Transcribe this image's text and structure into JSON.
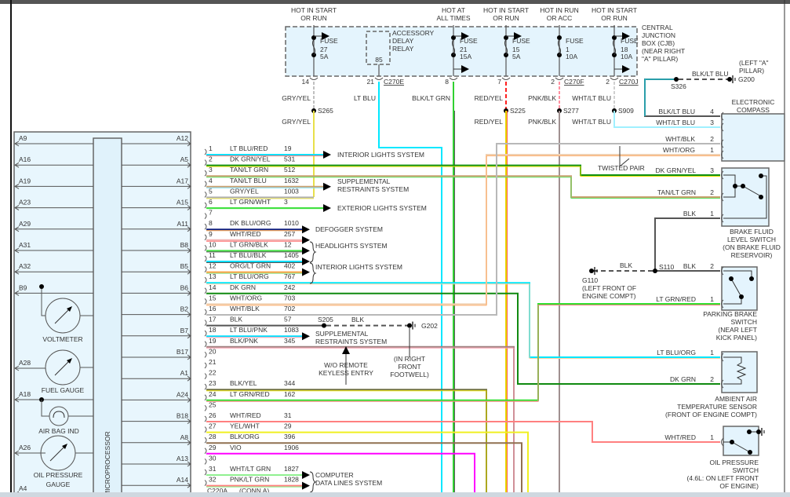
{
  "colors": {
    "box_fill": "#e4f4fd",
    "line": "#555555",
    "ground": "#000000"
  },
  "cjb": {
    "title": [
      "CENTRAL",
      "JUNCTION",
      "BOX (CJB)",
      "(NEAR RIGHT",
      "\"A\" PILLAR)"
    ],
    "feeds": [
      {
        "hot": [
          "HOT IN START",
          "OR RUN"
        ],
        "fuse": "FUSE",
        "num": "27",
        "amp": "5A",
        "pin": "14",
        "conn": "",
        "wire_top": "GRY/YEL",
        "splice": "S265",
        "wire_bottom": "GRY/YEL",
        "top_hex": "#c0c0c0",
        "bottom_hex": "#e8e04a"
      },
      {
        "hot": [
          "",
          ""
        ],
        "relay": [
          "ACCESSORY",
          "DELAY",
          "RELAY"
        ],
        "terminal": "85",
        "pin": "21",
        "conn": "C270E",
        "wire_top": "LT BLU",
        "splice": "",
        "wire_bottom": "",
        "top_hex": "#00e8ff",
        "bottom_hex": "#00e8ff"
      },
      {
        "hot": [
          "HOT AT",
          "ALL TIMES"
        ],
        "fuse": "FUSE",
        "num": "21",
        "amp": "15A",
        "pin": "8",
        "conn": "",
        "wire_top": "BLK/LT GRN",
        "splice": "",
        "wire_bottom": "",
        "top_hex": "#30d030",
        "bottom_hex": "#30d030"
      },
      {
        "hot": [
          "HOT IN START",
          "OR RUN"
        ],
        "fuse": "FUSE",
        "num": "15",
        "amp": "5A",
        "pin": "7",
        "conn": "",
        "wire_top": "RED/YEL",
        "splice": "S225",
        "wire_bottom": "RED/YEL",
        "top_hex": "#ff2020",
        "bottom_hex": "#e8d800"
      },
      {
        "hot": [
          "HOT IN RUN",
          "OR ACC"
        ],
        "fuse": "FUSE",
        "num": "1",
        "amp": "10A",
        "pin": "2",
        "conn": "C270F",
        "wire_top": "PNK/BLK",
        "splice": "S277",
        "wire_bottom": "PNK/BLK",
        "top_hex": "#ff90a0",
        "bottom_hex": "#a09090"
      },
      {
        "hot": [
          "HOT IN START",
          "OR RUN"
        ],
        "fuse": "FUSE",
        "num": "18",
        "amp": "10A",
        "pin": "2",
        "conn": "C270J",
        "wire_top": "WHT/LT BLU",
        "splice": "S909",
        "wire_bottom": "WHT/LT BLU",
        "top_hex": "#d0d0d0",
        "bottom_hex": "#a0f0ff"
      }
    ]
  },
  "connector": {
    "name": "C220A",
    "conn": "(CONN A)",
    "pins": [
      {
        "pin": "1",
        "color": "LT BLU/RED",
        "circuit": "19",
        "hex": "#00e0ff",
        "stripe": "#ff8080"
      },
      {
        "pin": "2",
        "color": "DK GRN/YEL",
        "circuit": "531",
        "hex": "#109010",
        "stripe": "#e8e000"
      },
      {
        "pin": "3",
        "color": "TAN/LT GRN",
        "circuit": "512",
        "hex": "#c8a070",
        "stripe": "#60e060"
      },
      {
        "pin": "4",
        "color": "TAN/LT BLU",
        "circuit": "1632",
        "hex": "#c8a070",
        "stripe": "#80e0ff"
      },
      {
        "pin": "5",
        "color": "GRY/YEL",
        "circuit": "1003",
        "hex": "#b0b0b0",
        "stripe": "#e8e04a"
      },
      {
        "pin": "6",
        "color": "LT GRN/WHT",
        "circuit": "3",
        "hex": "#40e040",
        "stripe": "#e0ffe0"
      },
      {
        "pin": "7",
        "color": "",
        "circuit": "",
        "hex": "",
        "stripe": ""
      },
      {
        "pin": "8",
        "color": "DK BLU/ORG",
        "circuit": "1010",
        "hex": "#102080",
        "stripe": "#ffa040"
      },
      {
        "pin": "9",
        "color": "WHT/RED",
        "circuit": "257",
        "hex": "#f0b0b0",
        "stripe": "#ff7070"
      },
      {
        "pin": "10",
        "color": "LT GRN/BLK",
        "circuit": "12",
        "hex": "#40e040",
        "stripe": "#505050"
      },
      {
        "pin": "11",
        "color": "LT BLU/BLK",
        "circuit": "1405",
        "hex": "#00e0ff",
        "stripe": "#505050"
      },
      {
        "pin": "12",
        "color": "ORG/LT GRN",
        "circuit": "402",
        "hex": "#ffa040",
        "stripe": "#80e080"
      },
      {
        "pin": "13",
        "color": "LT BLU/ORG",
        "circuit": "767",
        "hex": "#00e8ff",
        "stripe": "#ffd0a0"
      },
      {
        "pin": "14",
        "color": "DK GRN",
        "circuit": "242",
        "hex": "#108a10",
        "stripe": ""
      },
      {
        "pin": "15",
        "color": "WHT/ORG",
        "circuit": "703",
        "hex": "#f0d0b0",
        "stripe": "#ffb070"
      },
      {
        "pin": "16",
        "color": "WHT/BLK",
        "circuit": "702",
        "hex": "#b8b8b8",
        "stripe": ""
      },
      {
        "pin": "17",
        "color": "BLK",
        "circuit": "57",
        "hex": "#555555",
        "stripe": ""
      },
      {
        "pin": "18",
        "color": "LT BLU/PNK",
        "circuit": "1083",
        "hex": "#00e0ff",
        "stripe": "#ffa0b0"
      },
      {
        "pin": "19",
        "color": "BLK/PNK",
        "circuit": "345",
        "hex": "#a08080",
        "stripe": "#ffa0b0"
      },
      {
        "pin": "20",
        "color": "",
        "circuit": "",
        "hex": "",
        "stripe": ""
      },
      {
        "pin": "21",
        "color": "",
        "circuit": "",
        "hex": "",
        "stripe": ""
      },
      {
        "pin": "22",
        "color": "",
        "circuit": "",
        "hex": "",
        "stripe": ""
      },
      {
        "pin": "23",
        "color": "BLK/YEL",
        "circuit": "344",
        "hex": "#707040",
        "stripe": "#e8e000"
      },
      {
        "pin": "24",
        "color": "LT GRN/RED",
        "circuit": "162",
        "hex": "#30e030",
        "stripe": "#ff8080"
      },
      {
        "pin": "25",
        "color": "",
        "circuit": "",
        "hex": "",
        "stripe": ""
      },
      {
        "pin": "26",
        "color": "WHT/RED",
        "circuit": "31",
        "hex": "#ff8080",
        "stripe": ""
      },
      {
        "pin": "27",
        "color": "YEL/WHT",
        "circuit": "29",
        "hex": "#f0f020",
        "stripe": ""
      },
      {
        "pin": "28",
        "color": "BLK/ORG",
        "circuit": "396",
        "hex": "#907050",
        "stripe": ""
      },
      {
        "pin": "29",
        "color": "VIO",
        "circuit": "1906",
        "hex": "#ff00ff",
        "stripe": ""
      },
      {
        "pin": "30",
        "color": "",
        "circuit": "",
        "hex": "",
        "stripe": ""
      },
      {
        "pin": "31",
        "color": "WHT/LT GRN",
        "circuit": "1827",
        "hex": "#90f090",
        "stripe": ""
      },
      {
        "pin": "32",
        "color": "PNK/LT GRN",
        "circuit": "1828",
        "hex": "#ff8080",
        "stripe": "#80f080"
      }
    ]
  },
  "systems": [
    {
      "lines": [
        "INTERIOR LIGHTS SYSTEM"
      ]
    },
    {
      "lines": [
        "SUPPLEMENTAL",
        "RESTRAINTS SYSTEM"
      ]
    },
    {
      "lines": [
        "EXTERIOR LIGHTS SYSTEM"
      ]
    },
    {
      "lines": [
        "DEFOGGER SYSTEM"
      ]
    },
    {
      "lines": [
        "HEADLIGHTS SYSTEM"
      ]
    },
    {
      "lines": [
        "INTERIOR LIGHTS SYSTEM"
      ]
    },
    {
      "lines": [
        "SUPPLEMENTAL",
        "RESTRAINTS SYSTEM"
      ]
    },
    {
      "lines": [
        "COMPUTER",
        "DATA LINES SYSTEM"
      ]
    }
  ],
  "notes": {
    "remote": [
      "W/O REMOTE",
      "KEYLESS ENTRY"
    ],
    "twisted": "TWISTED PAIR",
    "g202_loc": [
      "(IN RIGHT",
      "FRONT",
      "FOOTWELL)"
    ],
    "g200_loc": [
      "(LEFT \"A\"",
      "PILLAR)"
    ],
    "g110_loc": [
      "G110",
      "(LEFT FRONT OF",
      "ENGINE COMPT)"
    ]
  },
  "grounds": {
    "s205": "S205",
    "s205_wire": "BLK",
    "g202": "G202",
    "s326": "S326",
    "s326_wire": "BLK/LT BLU",
    "g200": "G200",
    "s110": "S110",
    "s110_wire": "BLK",
    "s110_wire2": "BLK",
    "s110_wire3": "BLK"
  },
  "components": {
    "compass": {
      "title": [
        "ELECTRONIC",
        "COMPASS"
      ],
      "pins": [
        {
          "pin": "4",
          "wire": "BLK/LT BLU"
        },
        {
          "pin": "3",
          "wire": "WHT/LT BLU"
        },
        {
          "pin": "2",
          "wire": "WHT/BLK"
        },
        {
          "pin": "1",
          "wire": "WHT/ORG"
        }
      ]
    },
    "brake_fluid": {
      "title": [
        "BRAKE FLUID",
        "LEVEL SWITCH",
        "(ON BRAKE FLUID",
        "RESERVOIR)"
      ],
      "pins": [
        {
          "pin": "3",
          "wire": "DK GRN/YEL"
        },
        {
          "pin": "2",
          "wire": "TAN/LT GRN"
        },
        {
          "pin": "1",
          "wire": "BLK"
        }
      ]
    },
    "parking_brake": {
      "title": [
        "PARKING BRAKE",
        "SWITCH",
        "(NEAR LEFT",
        "KICK PANEL)"
      ],
      "pins": [
        {
          "pin": "2",
          "wire": "BLK"
        },
        {
          "pin": "1",
          "wire": "LT GRN/RED"
        }
      ]
    },
    "ambient": {
      "title": [
        "AMBIENT AIR",
        "TEMPERATURE SENSOR",
        "(FRONT OF ENGINE COMPT)"
      ],
      "pins": [
        {
          "pin": "1",
          "wire": "LT BLU/ORG"
        },
        {
          "pin": "2",
          "wire": "DK GRN"
        }
      ]
    },
    "oil_switch": {
      "title": [
        "OIL PRESSURE",
        "SWITCH",
        "(4.6L: ON LEFT FRONT",
        "OF ENGINE)"
      ],
      "pins": [
        {
          "pin": "1",
          "wire": "WHT/RED"
        }
      ]
    }
  },
  "cluster": {
    "microprocessor": "MICROPROCESSOR",
    "left_pins": [
      "A9",
      "A16",
      "A19",
      "A23",
      "A29",
      "A31",
      "A32",
      "B9"
    ],
    "lower_left_pins": [
      "A28",
      "A18",
      "A26",
      "A4"
    ],
    "right_pins": [
      "A12",
      "A5",
      "A17",
      "A15",
      "A11",
      "B8",
      "B5",
      "B6",
      "B2",
      "B7",
      "B17",
      "A1",
      "A24",
      "B18",
      "A8",
      "A13",
      "A14"
    ],
    "gauges": [
      {
        "label": [
          "VOLTMETER"
        ]
      },
      {
        "label": [
          "FUEL GAUGE"
        ]
      },
      {
        "label": [
          "AIR BAG IND"
        ]
      },
      {
        "label": [
          "OIL PRESSURE",
          "GAUGE"
        ]
      }
    ]
  }
}
